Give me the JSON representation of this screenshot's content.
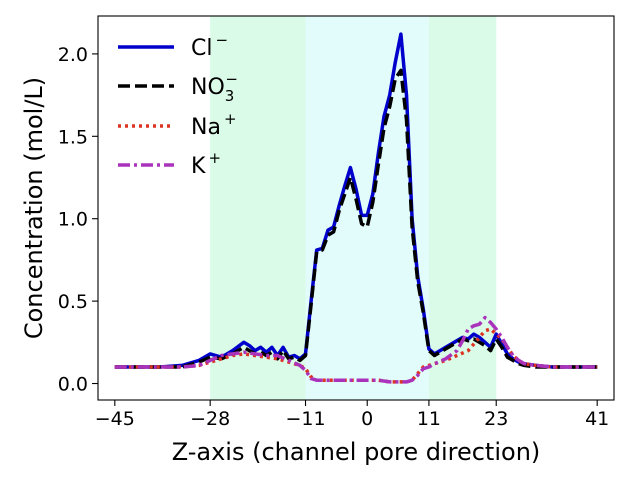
{
  "chart_data": {
    "type": "line",
    "xlabel": "Z-axis (channel pore direction)",
    "ylabel": "Concentration (mol/L)",
    "xlim": [
      -48,
      44
    ],
    "ylim": [
      -0.1,
      2.23
    ],
    "xticks": [
      -45,
      -28,
      -11,
      0,
      11,
      23,
      41
    ],
    "xtick_labels": [
      "−45",
      "−28",
      "−11",
      "0",
      "11",
      "23",
      "41"
    ],
    "yticks": [
      0.0,
      0.5,
      1.0,
      1.5,
      2.0
    ],
    "ytick_labels": [
      "0.0",
      "0.5",
      "1.0",
      "1.5",
      "2.0"
    ],
    "grid": false,
    "legend_position": "top-left",
    "shaded_regions": [
      {
        "x0": -28,
        "x1": -11,
        "color": "#d9fbe7"
      },
      {
        "x0": -11,
        "x1": 11,
        "color": "#e2fcfb"
      },
      {
        "x0": 11,
        "x1": 23,
        "color": "#d9fbe7"
      }
    ],
    "series": [
      {
        "name": "Cl",
        "charge": "−",
        "color": "#0000cc",
        "dash": "solid",
        "x": [
          -45,
          -41,
          -37,
          -33,
          -30,
          -28,
          -26,
          -24,
          -22,
          -21,
          -20,
          -19,
          -18,
          -17,
          -16,
          -15,
          -14,
          -13,
          -12,
          -11,
          -10,
          -9,
          -8,
          -7,
          -6,
          -5,
          -4,
          -3,
          -2,
          -1,
          0,
          1,
          2,
          3,
          4,
          5,
          6,
          7,
          8,
          9,
          10,
          11,
          12,
          13,
          14,
          15,
          16,
          17,
          18,
          19,
          20,
          21,
          22,
          23,
          24,
          25,
          26,
          27,
          28,
          30,
          33,
          37,
          41
        ],
        "y": [
          0.1,
          0.1,
          0.1,
          0.11,
          0.14,
          0.18,
          0.16,
          0.2,
          0.25,
          0.23,
          0.2,
          0.22,
          0.19,
          0.22,
          0.17,
          0.22,
          0.16,
          0.17,
          0.15,
          0.18,
          0.5,
          0.81,
          0.82,
          0.93,
          0.95,
          1.08,
          1.2,
          1.31,
          1.18,
          1.02,
          1.02,
          1.15,
          1.4,
          1.62,
          1.75,
          1.95,
          2.12,
          1.75,
          1.0,
          0.65,
          0.45,
          0.21,
          0.18,
          0.2,
          0.22,
          0.24,
          0.26,
          0.28,
          0.27,
          0.3,
          0.28,
          0.25,
          0.22,
          0.3,
          0.24,
          0.18,
          0.15,
          0.13,
          0.12,
          0.11,
          0.1,
          0.1,
          0.1
        ]
      },
      {
        "name": "NO",
        "subscript": "3",
        "charge": "−",
        "color": "#000000",
        "dash": "dashed",
        "x": [
          -45,
          -41,
          -37,
          -33,
          -30,
          -28,
          -26,
          -24,
          -22,
          -21,
          -20,
          -19,
          -18,
          -17,
          -16,
          -15,
          -14,
          -13,
          -12,
          -11,
          -10,
          -9,
          -8,
          -7,
          -6,
          -5,
          -4,
          -3,
          -2,
          -1,
          0,
          1,
          2,
          3,
          4,
          5,
          6,
          7,
          8,
          9,
          10,
          11,
          12,
          13,
          14,
          15,
          16,
          17,
          18,
          19,
          20,
          21,
          22,
          23,
          24,
          25,
          26,
          27,
          28,
          30,
          33,
          37,
          41
        ],
        "y": [
          0.1,
          0.1,
          0.1,
          0.1,
          0.13,
          0.16,
          0.15,
          0.18,
          0.22,
          0.2,
          0.18,
          0.19,
          0.17,
          0.19,
          0.15,
          0.2,
          0.15,
          0.16,
          0.14,
          0.17,
          0.48,
          0.8,
          0.81,
          0.9,
          0.92,
          1.05,
          1.15,
          1.25,
          1.12,
          0.97,
          0.95,
          1.1,
          1.33,
          1.55,
          1.68,
          1.85,
          1.9,
          1.6,
          0.95,
          0.62,
          0.43,
          0.2,
          0.17,
          0.19,
          0.21,
          0.23,
          0.25,
          0.27,
          0.26,
          0.27,
          0.25,
          0.23,
          0.2,
          0.27,
          0.22,
          0.16,
          0.14,
          0.12,
          0.11,
          0.1,
          0.1,
          0.1,
          0.1
        ]
      },
      {
        "name": "Na",
        "charge": "+",
        "color": "#dd3322",
        "dash": "dotted",
        "x": [
          -45,
          -41,
          -37,
          -33,
          -30,
          -28,
          -26,
          -24,
          -22,
          -20,
          -18,
          -16,
          -14,
          -12,
          -11,
          -10,
          -9,
          -8,
          -7,
          -5,
          -3,
          -1,
          0,
          2,
          4,
          5,
          6,
          7,
          8,
          9,
          10,
          11,
          12,
          14,
          16,
          18,
          19,
          20,
          21,
          22,
          23,
          24,
          25,
          26,
          27,
          28,
          30,
          33,
          37,
          41
        ],
        "y": [
          0.1,
          0.1,
          0.1,
          0.1,
          0.11,
          0.13,
          0.15,
          0.17,
          0.18,
          0.17,
          0.16,
          0.15,
          0.13,
          0.11,
          0.09,
          0.04,
          0.02,
          0.02,
          0.02,
          0.02,
          0.02,
          0.02,
          0.02,
          0.02,
          0.01,
          0.01,
          0.01,
          0.01,
          0.02,
          0.06,
          0.1,
          0.11,
          0.12,
          0.14,
          0.17,
          0.2,
          0.24,
          0.28,
          0.32,
          0.33,
          0.3,
          0.27,
          0.22,
          0.17,
          0.14,
          0.12,
          0.11,
          0.1,
          0.1,
          0.1
        ]
      },
      {
        "name": "K",
        "charge": "+",
        "color": "#aa33bb",
        "dash": "dashdot",
        "x": [
          -45,
          -41,
          -37,
          -33,
          -30,
          -28,
          -26,
          -24,
          -22,
          -20,
          -18,
          -16,
          -14,
          -12,
          -11,
          -10,
          -9,
          -8,
          -7,
          -5,
          -3,
          -1,
          0,
          2,
          4,
          5,
          6,
          7,
          8,
          9,
          10,
          11,
          12,
          14,
          16,
          17,
          18,
          19,
          20,
          21,
          22,
          23,
          24,
          25,
          26,
          27,
          28,
          30,
          33,
          37,
          41
        ],
        "y": [
          0.1,
          0.1,
          0.1,
          0.1,
          0.11,
          0.14,
          0.17,
          0.18,
          0.19,
          0.18,
          0.17,
          0.17,
          0.14,
          0.11,
          0.08,
          0.03,
          0.02,
          0.02,
          0.02,
          0.02,
          0.02,
          0.02,
          0.02,
          0.02,
          0.01,
          0.01,
          0.01,
          0.01,
          0.02,
          0.05,
          0.09,
          0.1,
          0.12,
          0.15,
          0.2,
          0.26,
          0.33,
          0.35,
          0.36,
          0.4,
          0.37,
          0.33,
          0.28,
          0.22,
          0.17,
          0.14,
          0.12,
          0.11,
          0.1,
          0.1,
          0.1
        ]
      }
    ]
  }
}
